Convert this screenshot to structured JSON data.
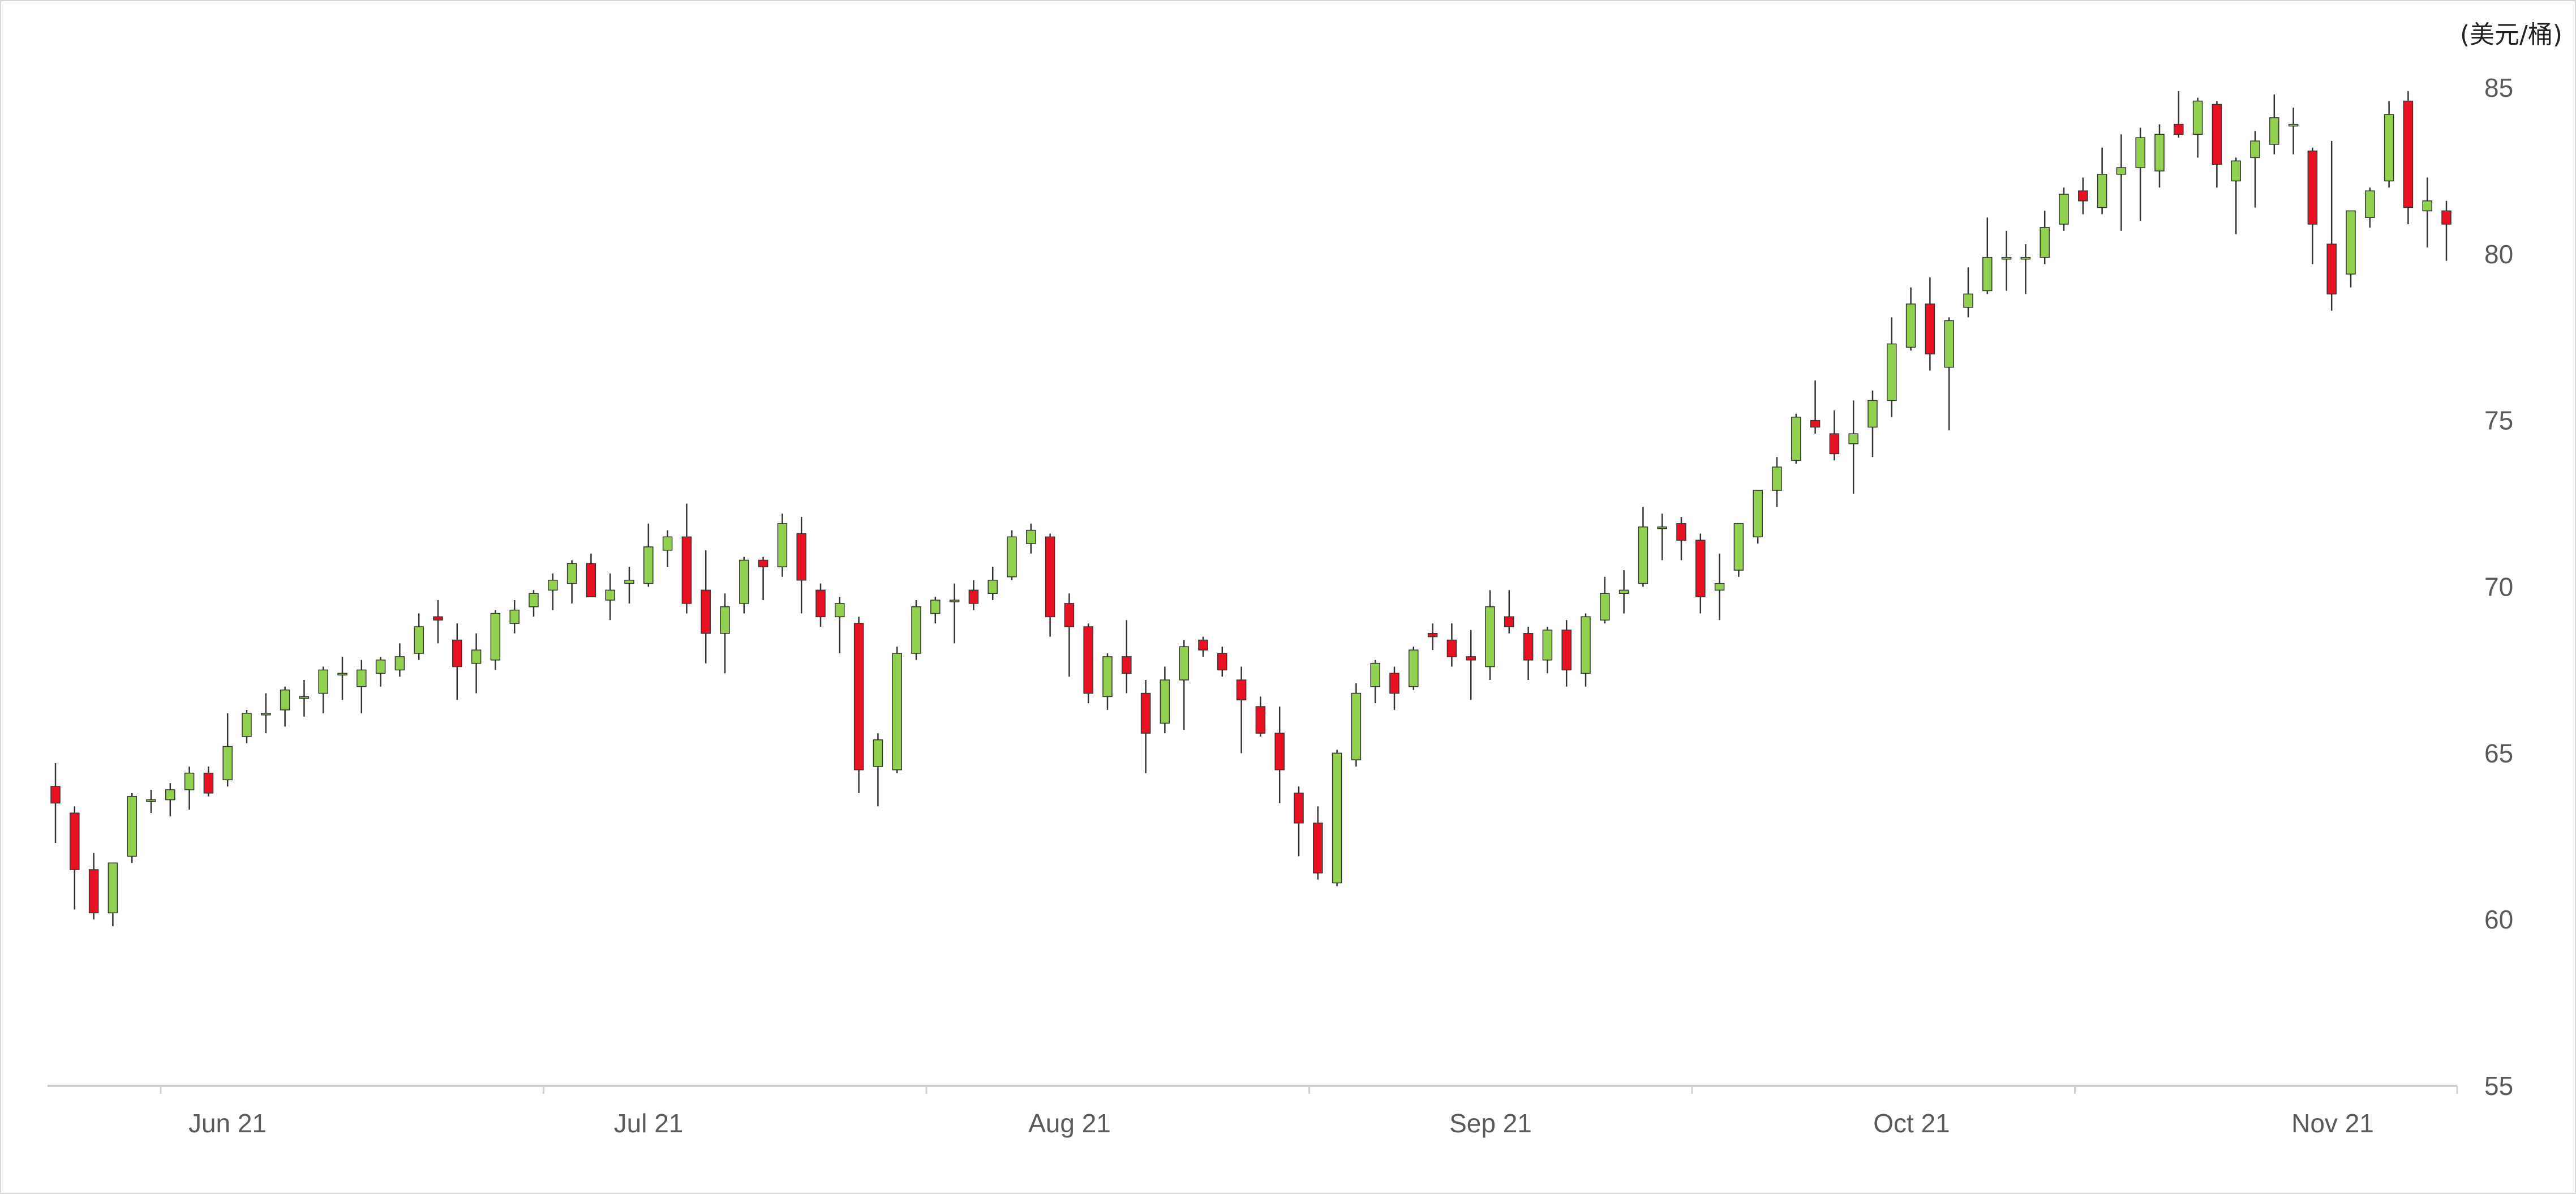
{
  "chart_data": {
    "type": "candlestick",
    "title": "",
    "ylabel": "",
    "unit_label": "(美元/桶)",
    "ylim": [
      55,
      85
    ],
    "yticks": [
      55,
      60,
      65,
      70,
      75,
      80,
      85
    ],
    "y_axis_side": "right",
    "grid": false,
    "colors": {
      "up": "#92d050",
      "down": "#e81123",
      "wick": "#333333",
      "axis": "#d0d0d0",
      "text": "#5a5a5a"
    },
    "x_tick_labels": [
      "Jun 21",
      "Jul 21",
      "Aug 21",
      "Sep 21",
      "Oct 21",
      "Nov 21"
    ],
    "series": [
      {
        "candles": [
          [
            64.0,
            64.7,
            62.3,
            63.5
          ],
          [
            63.2,
            63.4,
            60.3,
            61.5
          ],
          [
            61.5,
            62.0,
            60.0,
            60.2
          ],
          [
            60.2,
            61.7,
            59.8,
            61.7
          ],
          [
            61.9,
            63.8,
            61.7,
            63.7
          ],
          [
            63.6,
            63.9,
            63.2,
            63.6
          ],
          [
            63.6,
            64.1,
            63.1,
            63.9
          ],
          [
            63.9,
            64.6,
            63.3,
            64.4
          ],
          [
            64.4,
            64.6,
            63.7,
            63.8
          ],
          [
            64.2,
            66.2,
            64.0,
            65.2
          ],
          [
            65.5,
            66.3,
            65.3,
            66.2
          ],
          [
            66.2,
            66.8,
            65.6,
            66.2
          ],
          [
            66.3,
            67.0,
            65.8,
            66.9
          ],
          [
            66.7,
            67.2,
            66.1,
            66.7
          ],
          [
            66.8,
            67.6,
            66.2,
            67.5
          ],
          [
            67.4,
            67.9,
            66.6,
            67.4
          ],
          [
            67.0,
            67.8,
            66.2,
            67.5
          ],
          [
            67.4,
            67.9,
            67.0,
            67.8
          ],
          [
            67.5,
            68.3,
            67.3,
            67.9
          ],
          [
            68.0,
            69.2,
            67.8,
            68.8
          ],
          [
            69.1,
            69.6,
            68.3,
            69.0
          ],
          [
            68.4,
            68.9,
            66.6,
            67.6
          ],
          [
            67.7,
            68.6,
            66.8,
            68.1
          ],
          [
            67.8,
            69.3,
            67.5,
            69.2
          ],
          [
            68.9,
            69.6,
            68.6,
            69.3
          ],
          [
            69.4,
            69.9,
            69.1,
            69.8
          ],
          [
            69.9,
            70.4,
            69.3,
            70.2
          ],
          [
            70.1,
            70.8,
            69.5,
            70.7
          ],
          [
            70.7,
            71.0,
            69.8,
            69.7
          ],
          [
            69.6,
            70.4,
            69.0,
            69.9
          ],
          [
            70.1,
            70.6,
            69.5,
            70.2
          ],
          [
            70.1,
            71.9,
            70.0,
            71.2
          ],
          [
            71.1,
            71.7,
            70.6,
            71.5
          ],
          [
            71.5,
            72.5,
            69.2,
            69.5
          ],
          [
            69.9,
            71.1,
            67.7,
            68.6
          ],
          [
            68.6,
            69.8,
            67.4,
            69.4
          ],
          [
            69.5,
            70.9,
            69.2,
            70.8
          ],
          [
            70.8,
            70.9,
            69.6,
            70.6
          ],
          [
            70.6,
            72.2,
            70.3,
            71.9
          ],
          [
            71.6,
            72.1,
            69.2,
            70.2
          ],
          [
            69.9,
            70.1,
            68.8,
            69.1
          ],
          [
            69.1,
            69.7,
            68.0,
            69.5
          ],
          [
            68.9,
            69.1,
            63.8,
            64.5
          ],
          [
            64.6,
            65.6,
            63.4,
            65.4
          ],
          [
            64.5,
            68.2,
            64.4,
            68.0
          ],
          [
            68.0,
            69.6,
            67.8,
            69.4
          ],
          [
            69.2,
            69.7,
            68.9,
            69.6
          ],
          [
            69.6,
            70.1,
            68.3,
            69.6
          ],
          [
            69.9,
            70.2,
            69.3,
            69.5
          ],
          [
            69.8,
            70.6,
            69.6,
            70.2
          ],
          [
            70.3,
            71.7,
            70.2,
            71.5
          ],
          [
            71.3,
            71.9,
            71.0,
            71.7
          ],
          [
            71.5,
            71.6,
            68.5,
            69.1
          ],
          [
            69.5,
            69.8,
            67.3,
            68.8
          ],
          [
            68.8,
            68.9,
            66.5,
            66.8
          ],
          [
            66.7,
            68.0,
            66.3,
            67.9
          ],
          [
            67.9,
            69.0,
            66.8,
            67.4
          ],
          [
            66.8,
            67.2,
            64.4,
            65.6
          ],
          [
            65.9,
            67.6,
            65.6,
            67.2
          ],
          [
            67.2,
            68.4,
            65.7,
            68.2
          ],
          [
            68.4,
            68.5,
            67.9,
            68.1
          ],
          [
            68.0,
            68.2,
            67.3,
            67.5
          ],
          [
            67.2,
            67.6,
            65.0,
            66.6
          ],
          [
            66.4,
            66.7,
            65.5,
            65.6
          ],
          [
            65.6,
            66.4,
            63.5,
            64.5
          ],
          [
            63.8,
            64.0,
            61.9,
            62.9
          ],
          [
            62.9,
            63.4,
            61.2,
            61.4
          ],
          [
            61.1,
            65.1,
            61.0,
            65.0
          ],
          [
            64.8,
            67.1,
            64.6,
            66.8
          ],
          [
            67.0,
            67.8,
            66.5,
            67.7
          ],
          [
            67.4,
            67.6,
            66.3,
            66.8
          ],
          [
            67.0,
            68.2,
            66.9,
            68.1
          ],
          [
            68.6,
            68.9,
            68.1,
            68.5
          ],
          [
            68.4,
            68.9,
            67.6,
            67.9
          ],
          [
            67.9,
            68.7,
            66.6,
            67.8
          ],
          [
            67.6,
            69.9,
            67.2,
            69.4
          ],
          [
            69.1,
            69.9,
            68.6,
            68.8
          ],
          [
            68.6,
            68.8,
            67.2,
            67.8
          ],
          [
            67.8,
            68.8,
            67.4,
            68.7
          ],
          [
            68.7,
            69.0,
            67.0,
            67.5
          ],
          [
            67.4,
            69.2,
            67.0,
            69.1
          ],
          [
            69.0,
            70.3,
            68.9,
            69.8
          ],
          [
            69.8,
            70.5,
            69.2,
            69.9
          ],
          [
            70.1,
            72.4,
            70.0,
            71.8
          ],
          [
            71.8,
            72.2,
            70.8,
            71.8
          ],
          [
            71.9,
            72.1,
            70.8,
            71.4
          ],
          [
            71.4,
            71.6,
            69.2,
            69.7
          ],
          [
            69.9,
            71.0,
            69.0,
            70.1
          ],
          [
            70.5,
            71.9,
            70.3,
            71.9
          ],
          [
            71.5,
            72.9,
            71.3,
            72.9
          ],
          [
            72.9,
            73.9,
            72.4,
            73.6
          ],
          [
            73.8,
            75.2,
            73.7,
            75.1
          ],
          [
            75.0,
            76.2,
            74.6,
            74.8
          ],
          [
            74.6,
            75.3,
            73.8,
            74.0
          ],
          [
            74.3,
            75.6,
            72.8,
            74.6
          ],
          [
            74.8,
            75.9,
            73.9,
            75.6
          ],
          [
            75.6,
            78.1,
            75.1,
            77.3
          ],
          [
            77.2,
            79.0,
            77.1,
            78.5
          ],
          [
            78.5,
            79.3,
            76.5,
            77.0
          ],
          [
            76.6,
            78.1,
            74.7,
            78.0
          ],
          [
            78.4,
            79.6,
            78.1,
            78.8
          ],
          [
            78.9,
            81.1,
            78.8,
            79.9
          ],
          [
            79.9,
            80.7,
            78.9,
            79.9
          ],
          [
            79.9,
            80.3,
            78.8,
            79.9
          ],
          [
            79.9,
            81.3,
            79.7,
            80.8
          ],
          [
            80.9,
            82.0,
            80.7,
            81.8
          ],
          [
            81.9,
            82.3,
            81.2,
            81.6
          ],
          [
            81.4,
            83.2,
            81.2,
            82.4
          ],
          [
            82.4,
            83.6,
            80.7,
            82.6
          ],
          [
            82.6,
            83.8,
            81.0,
            83.5
          ],
          [
            82.5,
            83.9,
            82.0,
            83.6
          ],
          [
            83.9,
            84.9,
            83.5,
            83.6
          ],
          [
            83.6,
            84.7,
            82.9,
            84.6
          ],
          [
            84.5,
            84.6,
            82.0,
            82.7
          ],
          [
            82.2,
            82.9,
            80.6,
            82.8
          ],
          [
            82.9,
            83.7,
            81.4,
            83.4
          ],
          [
            83.3,
            84.8,
            83.0,
            84.1
          ],
          [
            83.9,
            84.4,
            83.0,
            83.9
          ],
          [
            83.1,
            83.2,
            79.7,
            80.9
          ],
          [
            80.3,
            83.4,
            78.3,
            78.8
          ],
          [
            79.4,
            81.3,
            79.0,
            81.3
          ],
          [
            81.1,
            82.0,
            80.8,
            81.9
          ],
          [
            82.2,
            84.6,
            82.0,
            84.2
          ],
          [
            84.6,
            84.9,
            80.9,
            81.4
          ],
          [
            81.3,
            82.3,
            80.2,
            81.6
          ],
          [
            81.3,
            81.6,
            79.8,
            80.9
          ]
        ]
      }
    ]
  }
}
